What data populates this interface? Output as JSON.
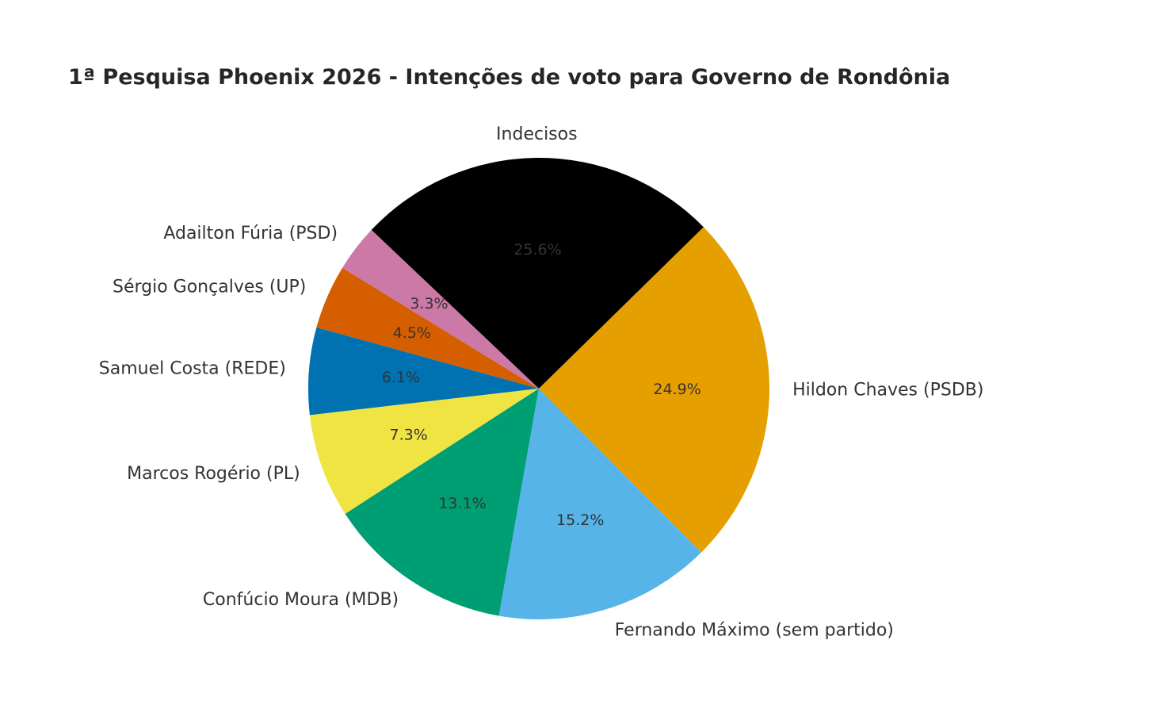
{
  "chart_data": {
    "type": "pie",
    "title": "1ª Pesquisa Phoenix 2026 - Intenções de voto para Governo de Rondônia",
    "slices": [
      {
        "label": "Indecisos",
        "value": 25.6,
        "pct_label": "25.6%",
        "color": "#000000"
      },
      {
        "label": "Adailton Fúria (PSD)",
        "value": 3.3,
        "pct_label": "3.3%",
        "color": "#CC79A7"
      },
      {
        "label": "Sérgio Gonçalves (UP)",
        "value": 4.5,
        "pct_label": "4.5%",
        "color": "#D55E00"
      },
      {
        "label": "Samuel Costa (REDE)",
        "value": 6.1,
        "pct_label": "6.1%",
        "color": "#0072B2"
      },
      {
        "label": "Marcos Rogério (PL)",
        "value": 7.3,
        "pct_label": "7.3%",
        "color": "#F0E442"
      },
      {
        "label": "Confúcio Moura (MDB)",
        "value": 13.1,
        "pct_label": "13.1%",
        "color": "#009E73"
      },
      {
        "label": "Fernando Máximo (sem partido)",
        "value": 15.2,
        "pct_label": "15.2%",
        "color": "#56B4E9"
      },
      {
        "label": "Hildon Chaves (PSDB)",
        "value": 24.9,
        "pct_label": "24.9%",
        "color": "#E69F00"
      }
    ]
  }
}
